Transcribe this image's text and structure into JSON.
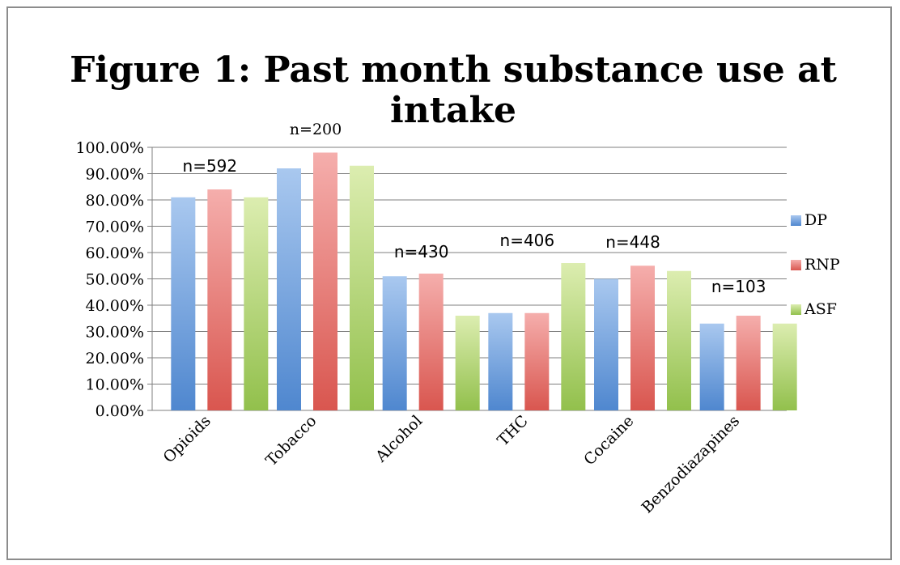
{
  "chart_data": {
    "type": "bar",
    "title": "Figure 1: Past month substance use at intake",
    "categories": [
      "Opioids",
      "Tobacco",
      "Alcohol",
      "THC",
      "Cocaine",
      "Benzodiazapines"
    ],
    "n_labels": [
      "n=592",
      "n=200",
      "n=430",
      "n=406",
      "n=448",
      "n=103"
    ],
    "series": [
      {
        "name": "DP",
        "values": [
          0.81,
          0.92,
          0.51,
          0.37,
          0.5,
          0.33
        ]
      },
      {
        "name": "RNP",
        "values": [
          0.84,
          0.98,
          0.52,
          0.37,
          0.55,
          0.36
        ]
      },
      {
        "name": "ASF",
        "values": [
          0.81,
          0.93,
          0.36,
          0.56,
          0.53,
          0.33
        ]
      }
    ],
    "yticks": [
      "0.00%",
      "10.00%",
      "20.00%",
      "30.00%",
      "40.00%",
      "50.00%",
      "60.00%",
      "70.00%",
      "80.00%",
      "90.00%",
      "100.00%"
    ],
    "ylim": [
      0,
      1
    ],
    "grid": true,
    "legend": "right",
    "colors": {
      "DP": {
        "top": "#a9c8ef",
        "bottom": "#4f87cf"
      },
      "RNP": {
        "top": "#f5aeac",
        "bottom": "#d9564f"
      },
      "ASF": {
        "top": "#dcedb0",
        "bottom": "#92c04c"
      }
    }
  }
}
